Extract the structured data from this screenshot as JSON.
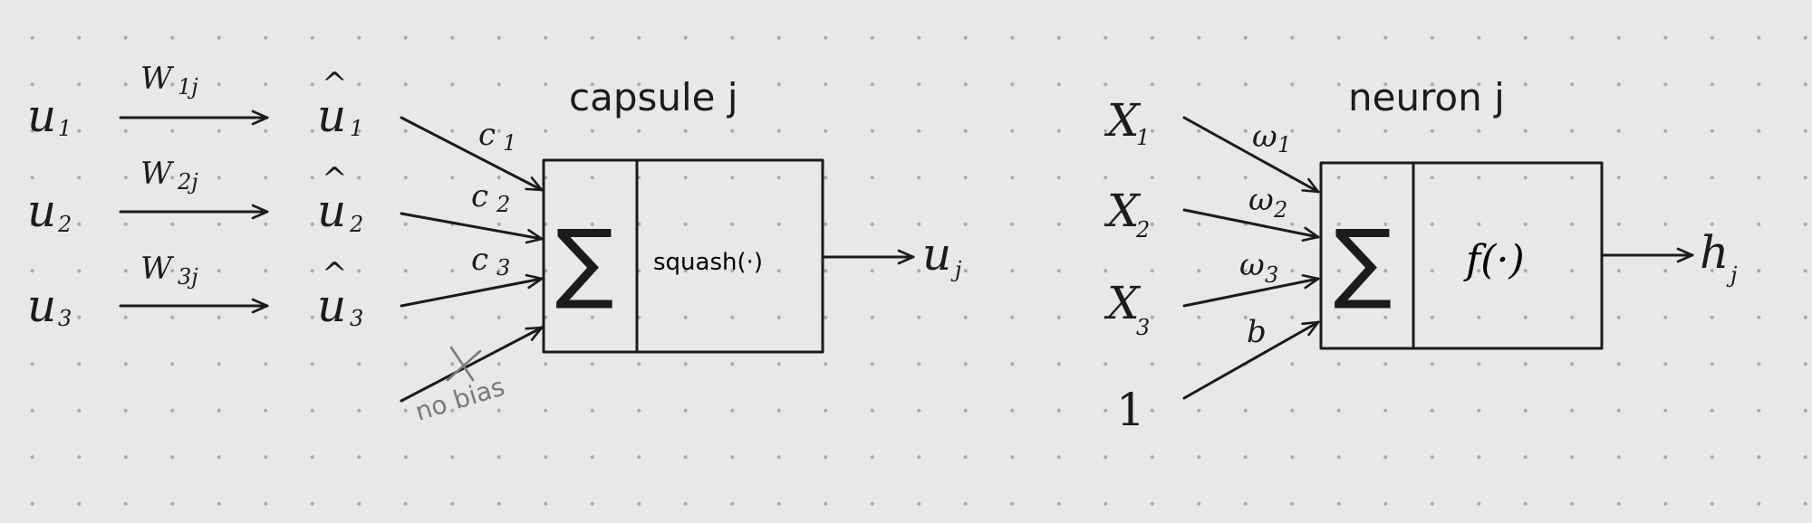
{
  "capsule": {
    "title": "capsule j",
    "inputs": [
      {
        "label": "u",
        "sub": "1",
        "hat_label": "u",
        "hat_sub": "1",
        "weight": "W",
        "weight_sub": "1j",
        "coef": "c",
        "coef_sub": "1"
      },
      {
        "label": "u",
        "sub": "2",
        "hat_label": "u",
        "hat_sub": "2",
        "weight": "W",
        "weight_sub": "2j",
        "coef": "c",
        "coef_sub": "2"
      },
      {
        "label": "u",
        "sub": "3",
        "hat_label": "u",
        "hat_sub": "3",
        "weight": "W",
        "weight_sub": "3j",
        "coef": "c",
        "coef_sub": "3"
      }
    ],
    "sum_symbol": "∑",
    "function": "squash(·)",
    "output": "u",
    "output_sub": "j",
    "bias_note": "no bias",
    "hat": "^"
  },
  "neuron": {
    "title": "neuron j",
    "inputs": [
      {
        "label": "X",
        "sub": "1",
        "weight": "ω",
        "weight_sub": "1"
      },
      {
        "label": "X",
        "sub": "2",
        "weight": "ω",
        "weight_sub": "2"
      },
      {
        "label": "X",
        "sub": "3",
        "weight": "ω",
        "weight_sub": "3"
      }
    ],
    "bias_input": "1",
    "bias_weight": "b",
    "sum_symbol": "∑",
    "function": "f(·)",
    "output": "h",
    "output_sub": "j"
  }
}
